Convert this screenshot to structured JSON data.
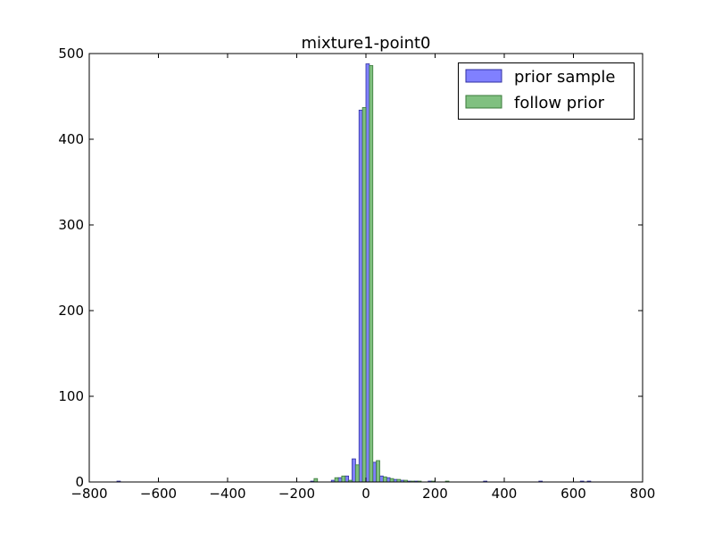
{
  "chart_data": {
    "type": "bar",
    "title": "mixture1-point0",
    "xlabel": "",
    "ylabel": "",
    "xlim": [
      -800,
      800
    ],
    "ylim": [
      0,
      500
    ],
    "x_ticks": [
      -800,
      -600,
      -400,
      -200,
      0,
      200,
      400,
      600,
      800
    ],
    "x_tick_labels": [
      "−800",
      "−600",
      "−400",
      "−200",
      "0",
      "200",
      "400",
      "600",
      "800"
    ],
    "y_ticks": [
      0,
      100,
      200,
      300,
      400,
      500
    ],
    "y_tick_labels": [
      "0",
      "100",
      "200",
      "300",
      "400",
      "500"
    ],
    "grid": false,
    "legend_position": "top-right",
    "bin_width": 20,
    "series": [
      {
        "name": "prior sample",
        "color": "#8080ff",
        "edge": "#3030a0",
        "x": [
          -720,
          -160,
          -100,
          -80,
          -60,
          -40,
          -20,
          0,
          20,
          40,
          60,
          80,
          100,
          120,
          140,
          180,
          340,
          500,
          620,
          640
        ],
        "values": [
          1,
          1,
          2,
          5,
          7,
          27,
          434,
          488,
          23,
          7,
          5,
          3,
          2,
          1,
          1,
          1,
          1,
          1,
          1,
          1
        ]
      },
      {
        "name": "follow prior",
        "color": "#80c080",
        "edge": "#3a7a3a",
        "x": [
          -160,
          -100,
          -80,
          -60,
          -40,
          -20,
          0,
          20,
          40,
          60,
          80,
          100,
          120,
          140,
          180,
          220
        ],
        "values": [
          4,
          5,
          7,
          2,
          20,
          437,
          486,
          25,
          6,
          4,
          3,
          2,
          1,
          1,
          1,
          1
        ]
      }
    ]
  }
}
